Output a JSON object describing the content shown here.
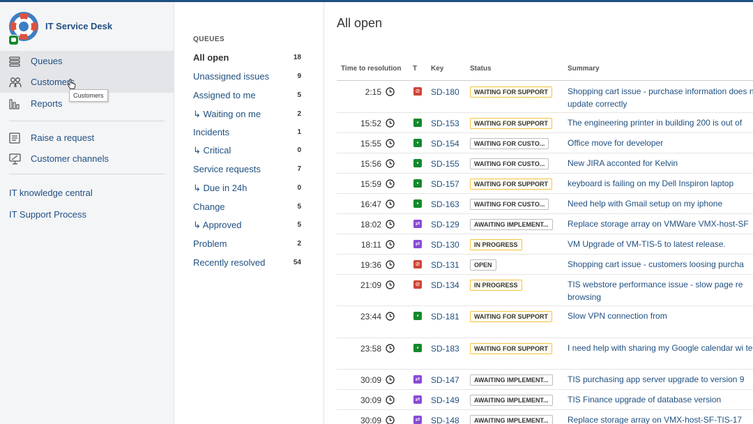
{
  "colors": {
    "link": "#205081",
    "brand": "#3b7fc4",
    "waiting": "#f6c342",
    "red_type": "#d04437",
    "green_type": "#14892c",
    "purple_type": "#8a4ad5"
  },
  "project": {
    "name": "IT Service Desk",
    "logo_icon": "lifebuoy-icon"
  },
  "sidebar": {
    "nav": [
      {
        "label": "Queues",
        "icon": "queues-icon"
      },
      {
        "label": "Customers",
        "icon": "customers-icon"
      },
      {
        "label": "Reports",
        "icon": "reports-icon"
      }
    ],
    "actions": [
      {
        "label": "Raise a request",
        "icon": "raise-request-icon"
      },
      {
        "label": "Customer channels",
        "icon": "customer-channels-icon"
      }
    ],
    "links": [
      {
        "label": "IT knowledge central"
      },
      {
        "label": "IT Support Process"
      }
    ],
    "tooltip": "Customers"
  },
  "queues": {
    "heading": "QUEUES",
    "items": [
      {
        "name": "All open",
        "count": "18"
      },
      {
        "name": "Unassigned issues",
        "count": "9"
      },
      {
        "name": "Assigned to me",
        "count": "5"
      },
      {
        "name": "↳ Waiting on me",
        "count": "2"
      },
      {
        "name": "Incidents",
        "count": "1"
      },
      {
        "name": "↳ Critical",
        "count": "0"
      },
      {
        "name": "Service requests",
        "count": "7"
      },
      {
        "name": "↳ Due in 24h",
        "count": "0"
      },
      {
        "name": "Change",
        "count": "5"
      },
      {
        "name": "↳ Approved",
        "count": "5"
      },
      {
        "name": "Problem",
        "count": "2"
      },
      {
        "name": "Recently resolved",
        "count": "54"
      }
    ]
  },
  "main": {
    "title": "All open",
    "columns": {
      "time": "Time to resolution",
      "type": "T",
      "key": "Key",
      "status": "Status",
      "summary": "Summary"
    },
    "rows": [
      {
        "time": "2:15",
        "type": "red",
        "key": "SD-180",
        "status": "WAITING FOR SUPPORT",
        "summary": "Shopping cart issue - purchase information does not update correctly"
      },
      {
        "time": "15:52",
        "type": "green",
        "key": "SD-153",
        "status": "WAITING FOR SUPPORT",
        "summary": "The engineering printer in building 200 is out of"
      },
      {
        "time": "15:55",
        "type": "green",
        "key": "SD-154",
        "status": "WAITING FOR CUSTO...",
        "summary": "Office move for developer"
      },
      {
        "time": "15:56",
        "type": "green",
        "key": "SD-155",
        "status": "WAITING FOR CUSTO...",
        "summary": "New JIRA acconted for Kelvin"
      },
      {
        "time": "15:59",
        "type": "green",
        "key": "SD-157",
        "status": "WAITING FOR SUPPORT",
        "summary": "keyboard is failing on my Dell Inspiron laptop"
      },
      {
        "time": "16:47",
        "type": "green",
        "key": "SD-163",
        "status": "WAITING FOR CUSTO...",
        "summary": "Need help with Gmail setup on my iphone"
      },
      {
        "time": "18:02",
        "type": "purple",
        "key": "SD-129",
        "status": "AWAITING IMPLEMENT...",
        "summary": "Replace storage array on VMWare VMX-host-SF"
      },
      {
        "time": "18:11",
        "type": "purple",
        "key": "SD-130",
        "status": "IN PROGRESS",
        "summary": "VM Upgrade of VM-TIS-5 to latest release."
      },
      {
        "time": "19:36",
        "type": "red",
        "key": "SD-131",
        "status": "OPEN",
        "summary": "Shopping cart issue - customers loosing purcha"
      },
      {
        "time": "21:09",
        "type": "red",
        "key": "SD-134",
        "status": "IN PROGRESS",
        "summary": "TIS webstore performance issue - slow page re browsing"
      },
      {
        "time": "23:44",
        "type": "green",
        "key": "SD-181",
        "status": "WAITING FOR SUPPORT",
        "summary": "Slow VPN connection from"
      },
      {
        "time": "23:58",
        "type": "green",
        "key": "SD-183",
        "status": "WAITING FOR SUPPORT",
        "summary": "I need help with sharing my Google calendar wi team"
      },
      {
        "time": "30:09",
        "type": "purple",
        "key": "SD-147",
        "status": "AWAITING IMPLEMENT...",
        "summary": "TIS purchasing app server upgrade to version 9"
      },
      {
        "time": "30:09",
        "type": "purple",
        "key": "SD-149",
        "status": "AWAITING IMPLEMENT...",
        "summary": "TIS Finance upgrade of database version"
      },
      {
        "time": "30:09",
        "type": "purple",
        "key": "SD-148",
        "status": "AWAITING IMPLEMENT...",
        "summary": "Replace storage array on VMX-host-SF-TIS-17"
      }
    ]
  }
}
